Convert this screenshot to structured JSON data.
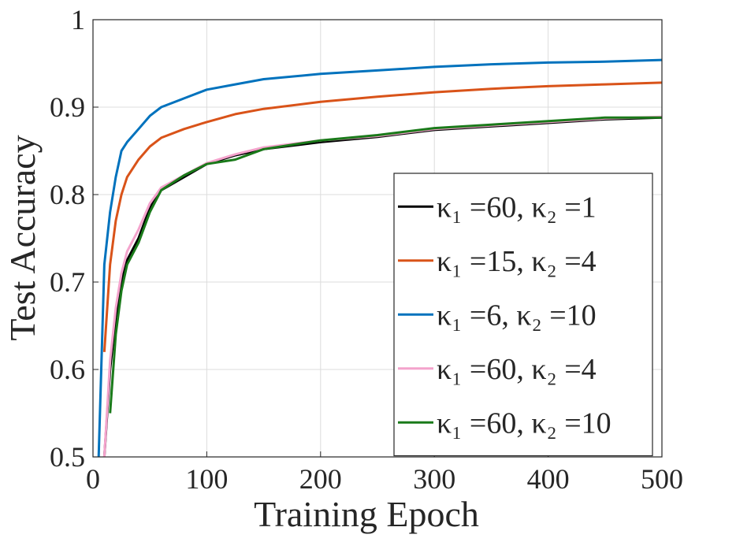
{
  "chart_data": {
    "type": "line",
    "xlabel": "Training Epoch",
    "ylabel": "Test Accuracy",
    "x": [
      5,
      10,
      15,
      20,
      25,
      30,
      40,
      50,
      60,
      80,
      100,
      125,
      150,
      200,
      250,
      300,
      350,
      400,
      450,
      500
    ],
    "xlim": [
      0,
      500
    ],
    "xticks": [
      0,
      100,
      200,
      300,
      400,
      500
    ],
    "ylim": [
      0.5,
      1
    ],
    "yticks": [
      0.5,
      0.6,
      0.7,
      0.8,
      0.9,
      1
    ],
    "grid": true,
    "legend": "lower right",
    "series": [
      {
        "name": "κ₁ =60, κ₂ =1",
        "color": "#000000",
        "values": [
          null,
          0.5,
          0.6,
          0.66,
          0.7,
          0.725,
          0.75,
          0.785,
          0.805,
          0.82,
          0.835,
          0.845,
          0.852,
          0.86,
          0.866,
          0.874,
          0.878,
          0.882,
          0.886,
          0.888
        ]
      },
      {
        "name": "κ₁ =15, κ₂ =4",
        "color": "#d95319",
        "values": [
          null,
          0.62,
          0.72,
          0.77,
          0.8,
          0.82,
          0.84,
          0.855,
          0.865,
          0.875,
          0.883,
          0.892,
          0.898,
          0.906,
          0.912,
          0.917,
          0.921,
          0.924,
          0.926,
          0.928
        ]
      },
      {
        "name": "κ₁ =6, κ₂ =10",
        "color": "#0072bd",
        "values": [
          0.5,
          0.72,
          0.78,
          0.82,
          0.85,
          0.86,
          0.875,
          0.89,
          0.9,
          0.91,
          0.92,
          0.926,
          0.932,
          0.938,
          0.942,
          0.946,
          0.949,
          0.951,
          0.952,
          0.954
        ]
      },
      {
        "name": "κ₁ =60, κ₂ =4",
        "color": "#f4a3cc",
        "values": [
          null,
          0.5,
          0.61,
          0.67,
          0.71,
          0.735,
          0.76,
          0.79,
          0.808,
          0.822,
          0.836,
          0.846,
          0.854,
          0.862,
          0.867,
          0.875,
          0.879,
          0.883,
          0.887,
          0.889
        ]
      },
      {
        "name": "κ₁ =60, κ₂ =10",
        "color": "#1a7a1a",
        "values": [
          null,
          null,
          0.55,
          0.64,
          0.69,
          0.72,
          0.745,
          0.78,
          0.805,
          0.822,
          0.835,
          0.84,
          0.852,
          0.862,
          0.868,
          0.876,
          0.88,
          0.884,
          0.888,
          0.888
        ]
      }
    ]
  }
}
